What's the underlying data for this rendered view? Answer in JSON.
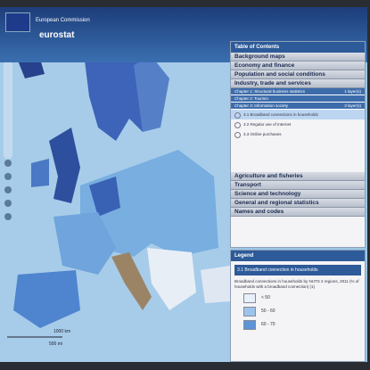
{
  "header": {
    "org": "European Commission",
    "brand": "eurostat"
  },
  "toc": {
    "title": "Table of Contents",
    "sections_top": [
      "Background maps",
      "Economy and finance",
      "Population and social conditions",
      "Industry, trade and services"
    ],
    "chapters": [
      {
        "label": "Chapter 1: Structural business statistics",
        "count": "1 layer(s)"
      },
      {
        "label": "Chapter 2: Tourism",
        "count": ""
      },
      {
        "label": "Chapter 3: Information society",
        "count": "3 layer(s)"
      }
    ],
    "layers": [
      "3.1 Broadband connections in households",
      "3.2 Regular use of Internet",
      "3.3 Online purchases"
    ],
    "sections_bottom": [
      "Agriculture and fisheries",
      "Transport",
      "Science and technology",
      "General and regional statistics",
      "Names and codes"
    ]
  },
  "legend": {
    "title": "Legend",
    "layer": "3.1 Broadband connection in households",
    "description": "Broadband connections in households by NUTS 2 regions, 2011 (% of households with a broadband connection) (1)",
    "classes": [
      "< 50",
      "50 - 60",
      "60 - 70"
    ]
  },
  "scale": {
    "km": "1000 km",
    "mi": "500 mi"
  }
}
